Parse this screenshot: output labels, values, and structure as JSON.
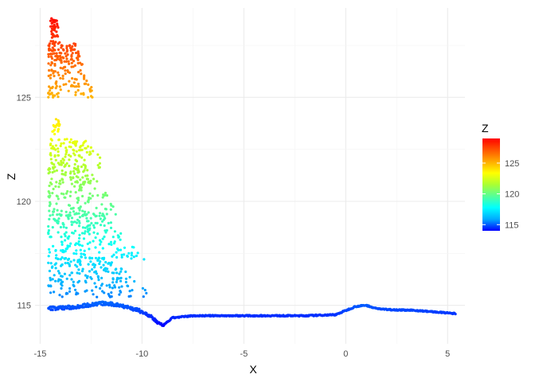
{
  "chart_data": {
    "type": "scatter",
    "title": "",
    "xlabel": "X",
    "ylabel": "Z",
    "xlim": [
      -15.25,
      5.85
    ],
    "ylim": [
      113.15,
      129.3
    ],
    "xticks": [
      -15,
      -10,
      -5,
      0,
      5
    ],
    "yticks": [
      115,
      120,
      125
    ],
    "grid": true,
    "legend": {
      "title": "Z",
      "placement": "right",
      "range": [
        114,
        129
      ],
      "ticks": [
        115,
        120,
        125
      ],
      "colors": [
        "#0000ff",
        "#00aaff",
        "#00ffff",
        "#55ff99",
        "#aaff33",
        "#ffff00",
        "#ffaa00",
        "#ff5500",
        "#ff0000"
      ]
    },
    "groups": [
      {
        "x_range": [
          -14.5,
          -13.9
        ],
        "z_range": [
          127.5,
          128.8
        ],
        "count": 45
      },
      {
        "x_range": [
          -14.6,
          -12.2
        ],
        "z_range": [
          125.0,
          127.6
        ],
        "count": 190
      },
      {
        "x_range": [
          -14.4,
          -13.8
        ],
        "z_range": [
          123.2,
          124.0
        ],
        "count": 20
      },
      {
        "x_range": [
          -14.5,
          -11.5
        ],
        "z_range": [
          121.6,
          123.0
        ],
        "count": 110
      },
      {
        "x_range": [
          -14.6,
          -11.0
        ],
        "z_range": [
          119.3,
          121.7
        ],
        "count": 180
      },
      {
        "x_range": [
          -14.6,
          -9.7
        ],
        "z_range": [
          117.2,
          119.4
        ],
        "count": 200
      },
      {
        "x_range": [
          -14.6,
          -9.2
        ],
        "z_range": [
          115.4,
          117.3
        ],
        "count": 190
      }
    ],
    "baseline": {
      "x": [
        -14.6,
        -13.5,
        -12.0,
        -11.0,
        -10.0,
        -9.5,
        -9.0,
        -8.5,
        -7.5,
        -5.0,
        -2.0,
        -0.5,
        0.0,
        0.5,
        1.0,
        1.5,
        2.0,
        3.5,
        5.4
      ],
      "z": [
        114.85,
        114.9,
        115.1,
        115.0,
        114.7,
        114.4,
        114.0,
        114.4,
        114.5,
        114.5,
        114.5,
        114.55,
        114.75,
        114.95,
        115.0,
        114.85,
        114.8,
        114.75,
        114.6
      ]
    }
  }
}
